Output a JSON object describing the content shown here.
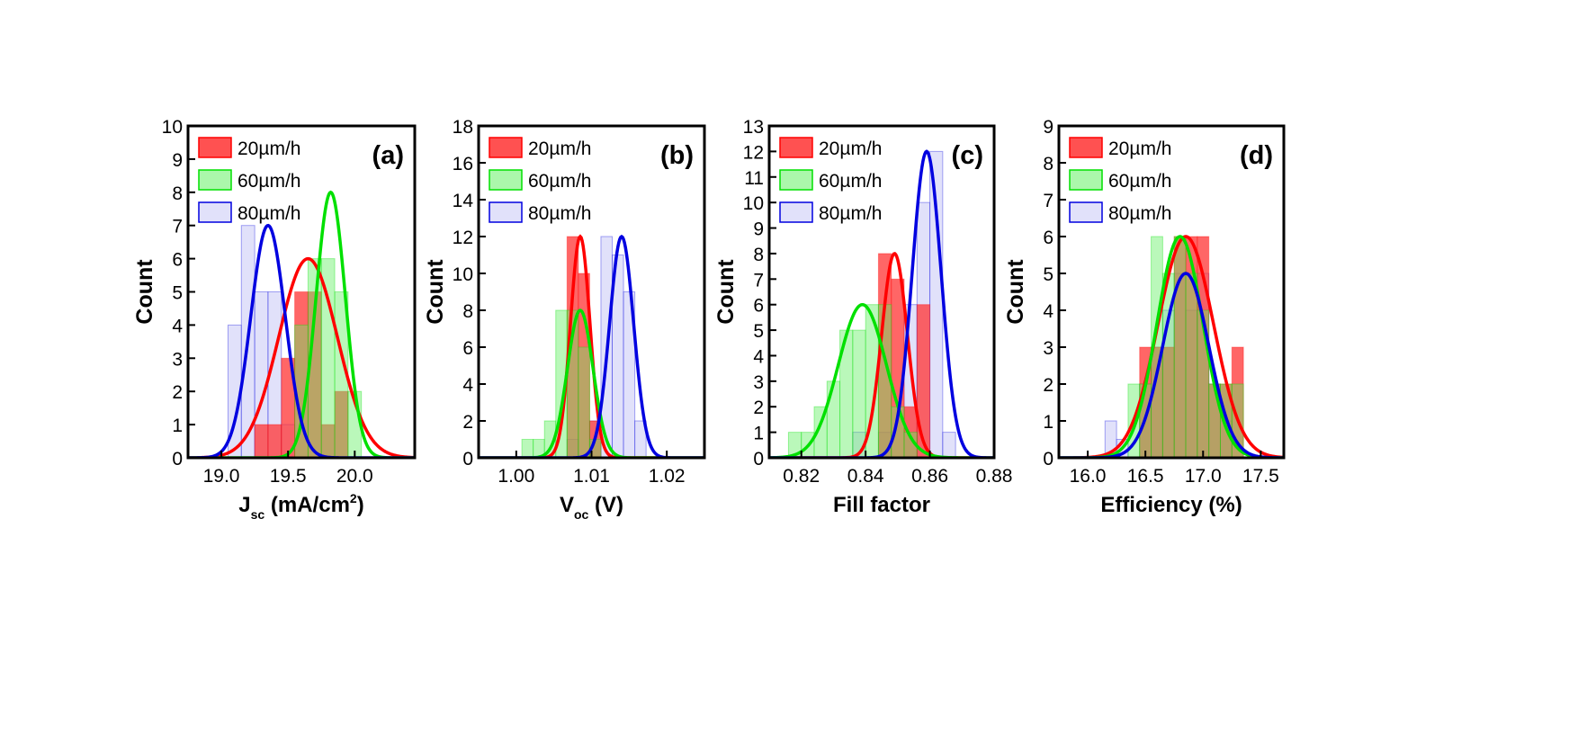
{
  "figure": {
    "legend_entries": [
      "20µm/h",
      "60µm/h",
      "80µm/h"
    ],
    "colors": {
      "20µm/h": "#ff0000",
      "60µm/h": "#00e000",
      "80µm/h": "#0000e0",
      "fill_20": "#ff3333",
      "fill_60": "#66f066",
      "fill_80": "#c8c8f5"
    },
    "legend_placement": "top-left",
    "grid": false
  },
  "chart_data": [
    {
      "type": "bar",
      "panel_label": "(a)",
      "ylabel": "Count",
      "xlabel": {
        "main": "J",
        "sub": "sc",
        "unit_pre": " (mA/cm",
        "sup": "2",
        "unit_post": ")"
      },
      "xlim": [
        18.75,
        20.45
      ],
      "ylim": [
        0,
        10
      ],
      "xticks": [
        19.0,
        19.5,
        20.0
      ],
      "xtick_labels": [
        "19.0",
        "19.5",
        "20.0"
      ],
      "yticks": [
        0,
        1,
        2,
        3,
        4,
        5,
        6,
        7,
        8,
        9,
        10
      ],
      "bin_width": 0.1,
      "series": [
        {
          "name": "20µm/h",
          "bins": [
            [
              19.3,
              1
            ],
            [
              19.4,
              1
            ],
            [
              19.5,
              3
            ],
            [
              19.6,
              5
            ],
            [
              19.7,
              5
            ],
            [
              19.8,
              1
            ],
            [
              19.9,
              2
            ]
          ],
          "fit": {
            "mu": 19.65,
            "sigma": 0.22,
            "amp": 6
          }
        },
        {
          "name": "60µm/h",
          "bins": [
            [
              19.6,
              4
            ],
            [
              19.7,
              6
            ],
            [
              19.8,
              6
            ],
            [
              19.9,
              5
            ],
            [
              20.0,
              2
            ]
          ],
          "fit": {
            "mu": 19.82,
            "sigma": 0.11,
            "amp": 8
          }
        },
        {
          "name": "80µm/h",
          "bins": [
            [
              19.1,
              4
            ],
            [
              19.2,
              7
            ],
            [
              19.3,
              5
            ],
            [
              19.4,
              5
            ],
            [
              19.5,
              1
            ]
          ],
          "fit": {
            "mu": 19.35,
            "sigma": 0.13,
            "amp": 7
          }
        }
      ]
    },
    {
      "type": "bar",
      "panel_label": "(b)",
      "ylabel": "Count",
      "xlabel": {
        "main": "V",
        "sub": "oc",
        "unit_pre": " (V)",
        "sup": "",
        "unit_post": ""
      },
      "xlim": [
        0.995,
        1.025
      ],
      "ylim": [
        0,
        18
      ],
      "xticks": [
        1.0,
        1.01,
        1.02
      ],
      "xtick_labels": [
        "1.00",
        "1.01",
        "1.02"
      ],
      "yticks": [
        0,
        2,
        4,
        6,
        8,
        10,
        12,
        14,
        16,
        18
      ],
      "bin_width": 0.0015,
      "series": [
        {
          "name": "20µm/h",
          "bins": [
            [
              1.0075,
              12
            ],
            [
              1.009,
              10
            ],
            [
              1.0105,
              2
            ]
          ],
          "fit": {
            "mu": 1.0085,
            "sigma": 0.0013,
            "amp": 12
          }
        },
        {
          "name": "60µm/h",
          "bins": [
            [
              1.0015,
              1
            ],
            [
              1.003,
              1
            ],
            [
              1.0045,
              2
            ],
            [
              1.006,
              8
            ],
            [
              1.0075,
              8
            ],
            [
              1.009,
              6
            ],
            [
              1.0105,
              1
            ]
          ],
          "fit": {
            "mu": 1.0085,
            "sigma": 0.0017,
            "amp": 8
          }
        },
        {
          "name": "80µm/h",
          "bins": [
            [
              1.0075,
              1
            ],
            [
              1.0105,
              2
            ],
            [
              1.012,
              12
            ],
            [
              1.0135,
              11
            ],
            [
              1.015,
              9
            ],
            [
              1.0165,
              2
            ]
          ],
          "fit": {
            "mu": 1.014,
            "sigma": 0.0016,
            "amp": 12
          }
        }
      ]
    },
    {
      "type": "bar",
      "panel_label": "(c)",
      "ylabel": "Count",
      "xlabel": {
        "main": "Fill factor",
        "sub": "",
        "unit_pre": "",
        "sup": "",
        "unit_post": ""
      },
      "xlim": [
        0.81,
        0.88
      ],
      "ylim": [
        0,
        13
      ],
      "xticks": [
        0.82,
        0.84,
        0.86,
        0.88
      ],
      "xtick_labels": [
        "0.82",
        "0.84",
        "0.86",
        "0.88"
      ],
      "yticks": [
        0,
        1,
        2,
        3,
        4,
        5,
        6,
        7,
        8,
        9,
        10,
        11,
        12,
        13
      ],
      "bin_width": 0.004,
      "series": [
        {
          "name": "20µm/h",
          "bins": [
            [
              0.846,
              8
            ],
            [
              0.85,
              7
            ],
            [
              0.854,
              2
            ],
            [
              0.858,
              6
            ]
          ],
          "fit": {
            "mu": 0.849,
            "sigma": 0.004,
            "amp": 8
          }
        },
        {
          "name": "60µm/h",
          "bins": [
            [
              0.818,
              1
            ],
            [
              0.822,
              1
            ],
            [
              0.826,
              2
            ],
            [
              0.83,
              3
            ],
            [
              0.834,
              5
            ],
            [
              0.838,
              5
            ],
            [
              0.842,
              6
            ],
            [
              0.846,
              6
            ],
            [
              0.85,
              2
            ],
            [
              0.854,
              1
            ]
          ],
          "fit": {
            "mu": 0.839,
            "sigma": 0.0075,
            "amp": 6
          }
        },
        {
          "name": "80µm/h",
          "bins": [
            [
              0.838,
              1
            ],
            [
              0.846,
              1
            ],
            [
              0.854,
              6
            ],
            [
              0.858,
              10
            ],
            [
              0.862,
              12
            ],
            [
              0.866,
              1
            ]
          ],
          "fit": {
            "mu": 0.859,
            "sigma": 0.0045,
            "amp": 12
          }
        }
      ]
    },
    {
      "type": "bar",
      "panel_label": "(d)",
      "ylabel": "Count",
      "xlabel": {
        "main": "Efficiency (%)",
        "sub": "",
        "unit_pre": "",
        "sup": "",
        "unit_post": ""
      },
      "xlim": [
        15.75,
        17.7
      ],
      "ylim": [
        0,
        9
      ],
      "xticks": [
        16.0,
        16.5,
        17.0,
        17.5
      ],
      "xtick_labels": [
        "16.0",
        "16.5",
        "17.0",
        "17.5"
      ],
      "yticks": [
        0,
        1,
        2,
        3,
        4,
        5,
        6,
        7,
        8,
        9
      ],
      "bin_width": 0.1,
      "series": [
        {
          "name": "20µm/h",
          "bins": [
            [
              16.5,
              3
            ],
            [
              16.6,
              3
            ],
            [
              16.7,
              3
            ],
            [
              16.8,
              6
            ],
            [
              16.9,
              6
            ],
            [
              17.0,
              6
            ],
            [
              17.1,
              2
            ],
            [
              17.2,
              2
            ],
            [
              17.3,
              3
            ]
          ],
          "fit": {
            "mu": 16.85,
            "sigma": 0.24,
            "amp": 6
          }
        },
        {
          "name": "60µm/h",
          "bins": [
            [
              16.4,
              2
            ],
            [
              16.5,
              2
            ],
            [
              16.6,
              6
            ],
            [
              16.7,
              5
            ],
            [
              16.8,
              6
            ],
            [
              16.9,
              5
            ],
            [
              17.0,
              4
            ],
            [
              17.1,
              2
            ],
            [
              17.2,
              2
            ],
            [
              17.3,
              2
            ]
          ],
          "fit": {
            "mu": 16.8,
            "sigma": 0.2,
            "amp": 6
          }
        },
        {
          "name": "80µm/h",
          "bins": [
            [
              16.2,
              1
            ],
            [
              16.3,
              0.5
            ],
            [
              16.5,
              2
            ],
            [
              16.6,
              3
            ],
            [
              16.7,
              4
            ],
            [
              16.8,
              5
            ],
            [
              16.9,
              4
            ],
            [
              17.0,
              5
            ],
            [
              17.1,
              2
            ],
            [
              17.2,
              1
            ]
          ],
          "fit": {
            "mu": 16.85,
            "sigma": 0.2,
            "amp": 5
          }
        }
      ]
    }
  ]
}
